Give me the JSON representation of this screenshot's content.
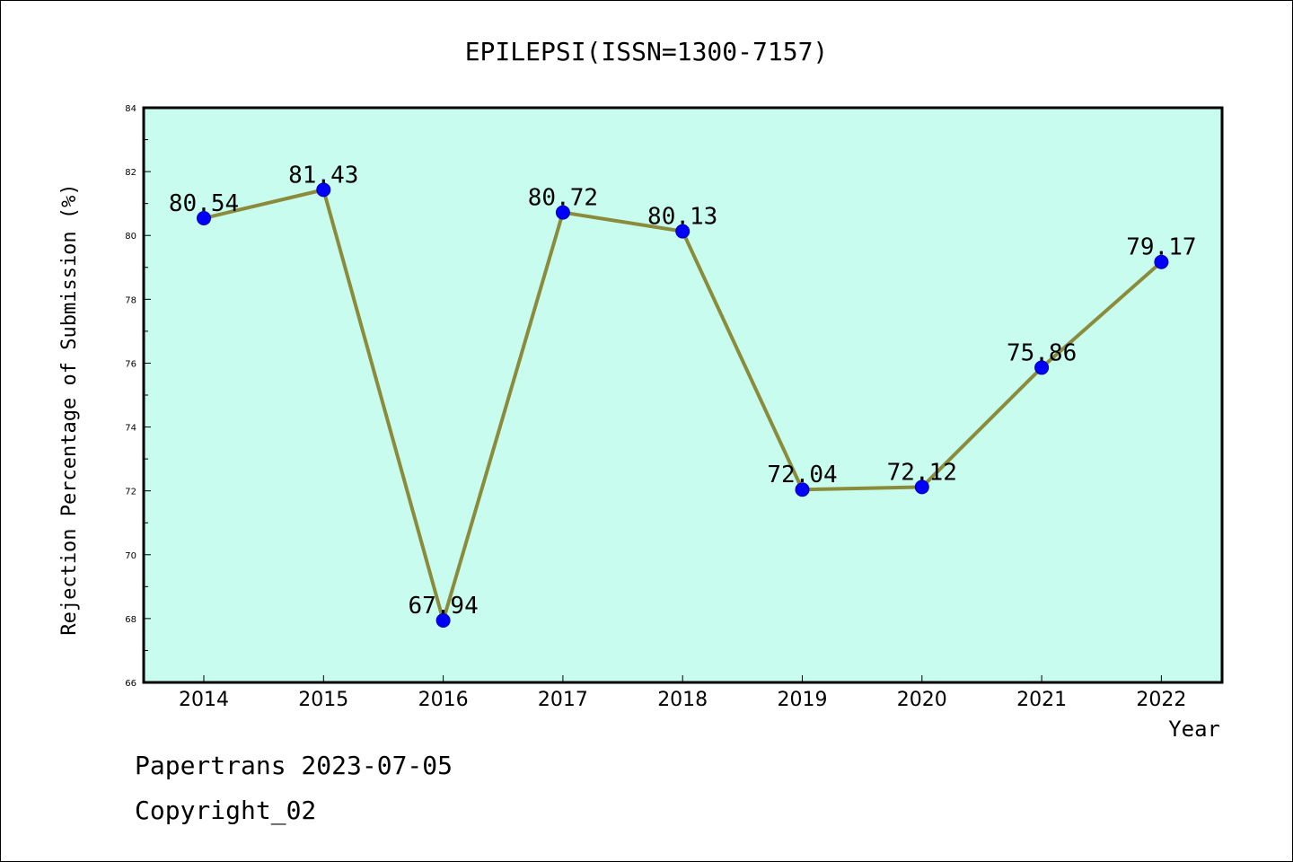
{
  "chart_data": {
    "type": "line",
    "title": "EPILEPSI(ISSN=1300-7157)",
    "xlabel": "Year",
    "ylabel": "Rejection Percentage of Submission (%)",
    "categories": [
      "2014",
      "2015",
      "2016",
      "2017",
      "2018",
      "2019",
      "2020",
      "2021",
      "2022"
    ],
    "values": [
      80.54,
      81.43,
      67.94,
      80.72,
      80.13,
      72.04,
      72.12,
      75.86,
      79.17
    ],
    "data_labels": [
      "80.54",
      "81.43",
      "67.94",
      "80.72",
      "80.13",
      "72.04",
      "72.12",
      "75.86",
      "79.17"
    ],
    "ylim": [
      66,
      84
    ],
    "yticks": [
      66,
      68,
      70,
      72,
      74,
      76,
      78,
      80,
      82,
      84
    ],
    "grid": false,
    "colors": {
      "plot_background": "#c8fcee",
      "line": "#8b8b3c",
      "marker": "#0000ff"
    }
  },
  "footer": {
    "line1": "Papertrans 2023-07-05",
    "line2": "Copyright_02"
  }
}
